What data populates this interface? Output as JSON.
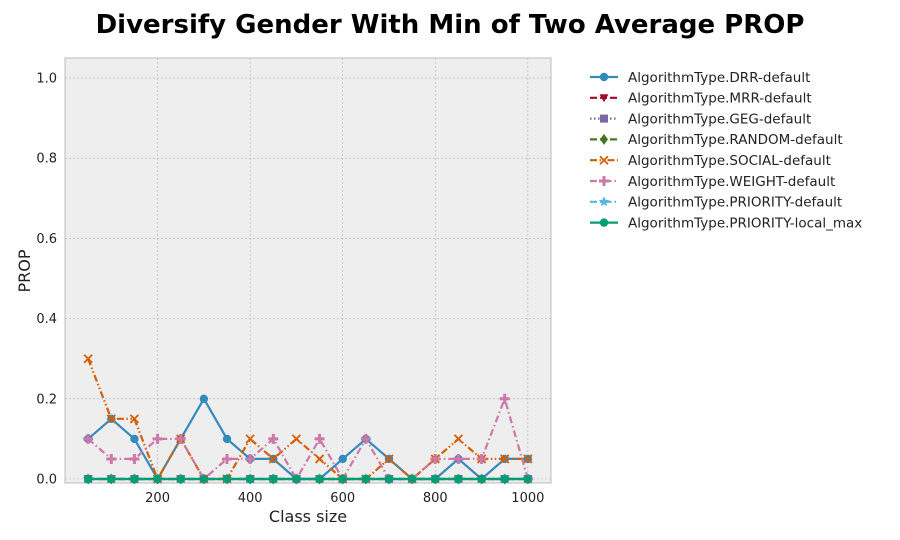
{
  "chart_data": {
    "type": "line",
    "title": "Diversify Gender With Min of Two Average PROP",
    "xlabel": "Class size",
    "ylabel": "PROP",
    "xlim": [
      0,
      1050
    ],
    "ylim": [
      -0.01,
      1.05
    ],
    "xticks": [
      200,
      400,
      600,
      800,
      1000
    ],
    "yticks": [
      0.0,
      0.2,
      0.4,
      0.6,
      0.8,
      1.0
    ],
    "ytick_labels": [
      "0.0",
      "0.2",
      "0.4",
      "0.6",
      "0.8",
      "1.0"
    ],
    "grid": true,
    "legend_placement": "outside-right",
    "x": [
      50,
      100,
      150,
      200,
      250,
      300,
      350,
      400,
      450,
      500,
      550,
      600,
      650,
      700,
      750,
      800,
      850,
      900,
      950,
      1000
    ],
    "series": [
      {
        "name": "AlgorithmType.DRR-default",
        "color": "#348abd",
        "marker": "circle",
        "dash": "solid",
        "values": [
          0.1,
          0.15,
          0.1,
          0.0,
          0.1,
          0.2,
          0.1,
          0.05,
          0.05,
          0.0,
          0.0,
          0.05,
          0.1,
          0.05,
          0.0,
          0.0,
          0.05,
          0.0,
          0.05,
          0.05
        ]
      },
      {
        "name": "AlgorithmType.MRR-default",
        "color": "#a60628",
        "marker": "triangle-down",
        "dash": "dashed",
        "values": [
          0.0,
          0.0,
          0.0,
          0.0,
          0.0,
          0.0,
          0.0,
          0.0,
          0.0,
          0.0,
          0.0,
          0.0,
          0.0,
          0.0,
          0.0,
          0.0,
          0.0,
          0.0,
          0.0,
          0.0
        ]
      },
      {
        "name": "AlgorithmType.GEG-default",
        "color": "#7a68a6",
        "marker": "square",
        "dash": "dotted",
        "values": [
          0.0,
          0.0,
          0.0,
          0.0,
          0.0,
          0.0,
          0.0,
          0.0,
          0.0,
          0.0,
          0.0,
          0.0,
          0.0,
          0.0,
          0.0,
          0.0,
          0.0,
          0.0,
          0.0,
          0.0
        ]
      },
      {
        "name": "AlgorithmType.RANDOM-default",
        "color": "#467821",
        "marker": "diamond",
        "dash": "dashed",
        "values": [
          0.0,
          0.0,
          0.0,
          0.0,
          0.0,
          0.0,
          0.0,
          0.0,
          0.0,
          0.0,
          0.0,
          0.0,
          0.0,
          0.0,
          0.0,
          0.0,
          0.0,
          0.0,
          0.0,
          0.0
        ]
      },
      {
        "name": "AlgorithmType.SOCIAL-default",
        "color": "#d55e00",
        "marker": "x",
        "dash": "dashdotdot",
        "values": [
          0.3,
          0.15,
          0.15,
          0.0,
          0.1,
          0.0,
          0.0,
          0.1,
          0.05,
          0.1,
          0.05,
          0.0,
          0.0,
          0.05,
          0.0,
          0.05,
          0.1,
          0.05,
          0.05,
          0.05
        ]
      },
      {
        "name": "AlgorithmType.WEIGHT-default",
        "color": "#cc79a7",
        "marker": "plus",
        "dash": "dashdot",
        "values": [
          0.1,
          0.05,
          0.05,
          0.1,
          0.1,
          0.0,
          0.05,
          0.05,
          0.1,
          0.0,
          0.1,
          0.0,
          0.1,
          0.0,
          0.0,
          0.05,
          0.05,
          0.05,
          0.2,
          0.0
        ]
      },
      {
        "name": "AlgorithmType.PRIORITY-default",
        "color": "#56b4e9",
        "marker": "star",
        "dash": "dashdot",
        "values": [
          0.0,
          0.0,
          0.0,
          0.0,
          0.0,
          0.0,
          0.0,
          0.0,
          0.0,
          0.0,
          0.0,
          0.0,
          0.0,
          0.0,
          0.0,
          0.0,
          0.0,
          0.0,
          0.0,
          0.0
        ]
      },
      {
        "name": "AlgorithmType.PRIORITY-local_max",
        "color": "#009e73",
        "marker": "circle",
        "dash": "solid",
        "values": [
          0.0,
          0.0,
          0.0,
          0.0,
          0.0,
          0.0,
          0.0,
          0.0,
          0.0,
          0.0,
          0.0,
          0.0,
          0.0,
          0.0,
          0.0,
          0.0,
          0.0,
          0.0,
          0.0,
          0.0
        ]
      }
    ]
  }
}
